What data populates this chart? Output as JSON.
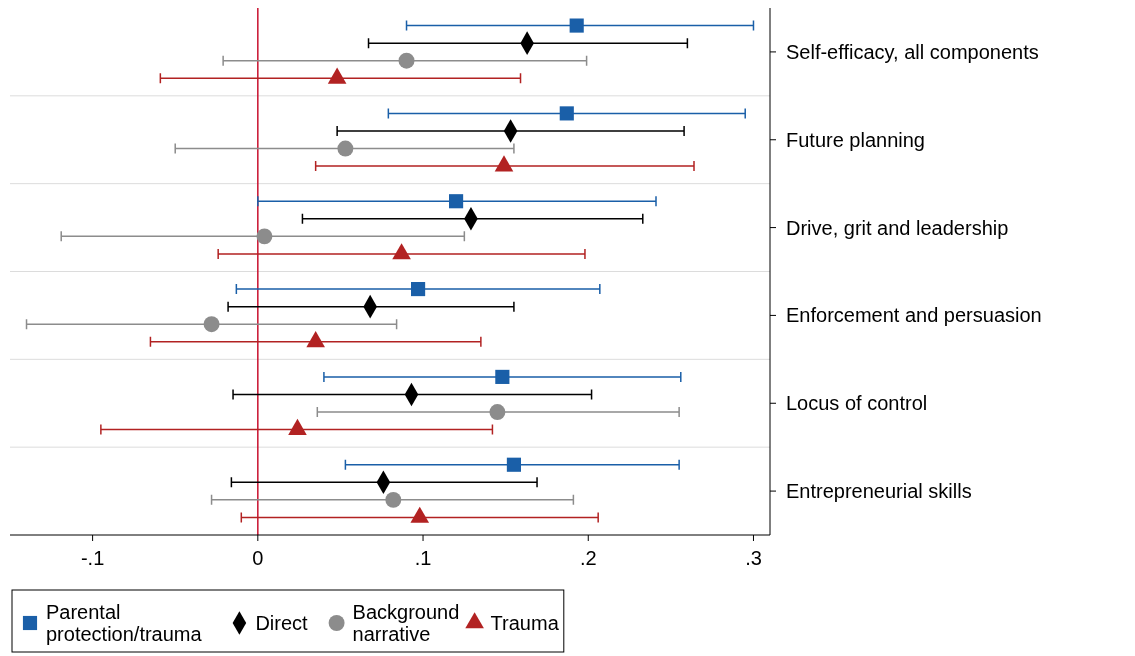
{
  "chart_data": {
    "type": "scatter",
    "orientation": "horizontal",
    "categories": [
      "Self-efficacy, all components",
      "Future planning",
      "Drive, grit and leadership",
      "Enforcement and persuasion",
      "Locus of control",
      "Entrepreneurial skills"
    ],
    "xlim": [
      -0.15,
      0.31
    ],
    "xticks": [
      {
        "value": -0.1,
        "label": "-.1"
      },
      {
        "value": 0,
        "label": "0"
      },
      {
        "value": 0.1,
        "label": ".1"
      },
      {
        "value": 0.2,
        "label": ".2"
      },
      {
        "value": 0.3,
        "label": ".3"
      }
    ],
    "grid": "y",
    "legend": "bottom",
    "ref_lines": [
      {
        "axis": "x",
        "value": 0,
        "color": "#c8102e"
      }
    ],
    "series": [
      {
        "name": "Parental protection/trauma",
        "color": "#1a5fa8",
        "marker": "square",
        "values": [
          0.193,
          0.187,
          0.12,
          0.097,
          0.148,
          0.155
        ],
        "errors": [
          [
            0.09,
            0.3
          ],
          [
            0.079,
            0.295
          ],
          [
            0.0,
            0.241
          ],
          [
            -0.013,
            0.207
          ],
          [
            0.04,
            0.256
          ],
          [
            0.053,
            0.255
          ]
        ]
      },
      {
        "name": "Direct",
        "color": "#000000",
        "marker": "diamond",
        "values": [
          0.163,
          0.153,
          0.129,
          0.068,
          0.093,
          0.076
        ],
        "errors": [
          [
            0.067,
            0.26
          ],
          [
            0.048,
            0.258
          ],
          [
            0.027,
            0.233
          ],
          [
            -0.018,
            0.155
          ],
          [
            -0.015,
            0.202
          ],
          [
            -0.016,
            0.169
          ]
        ]
      },
      {
        "name": "Background narrative",
        "color": "#8c8c8c",
        "marker": "circle",
        "values": [
          0.09,
          0.053,
          0.004,
          -0.028,
          0.145,
          0.082
        ],
        "errors": [
          [
            -0.021,
            0.199
          ],
          [
            -0.05,
            0.155
          ],
          [
            -0.119,
            0.125
          ],
          [
            -0.14,
            0.084
          ],
          [
            0.036,
            0.255
          ],
          [
            -0.028,
            0.191
          ]
        ]
      },
      {
        "name": "Trauma",
        "color": "#b22222",
        "marker": "triangle",
        "values": [
          0.048,
          0.149,
          0.087,
          0.035,
          0.024,
          0.098
        ],
        "errors": [
          [
            -0.059,
            0.159
          ],
          [
            0.035,
            0.264
          ],
          [
            -0.024,
            0.198
          ],
          [
            -0.065,
            0.135
          ],
          [
            -0.095,
            0.142
          ],
          [
            -0.01,
            0.206
          ]
        ]
      }
    ]
  }
}
